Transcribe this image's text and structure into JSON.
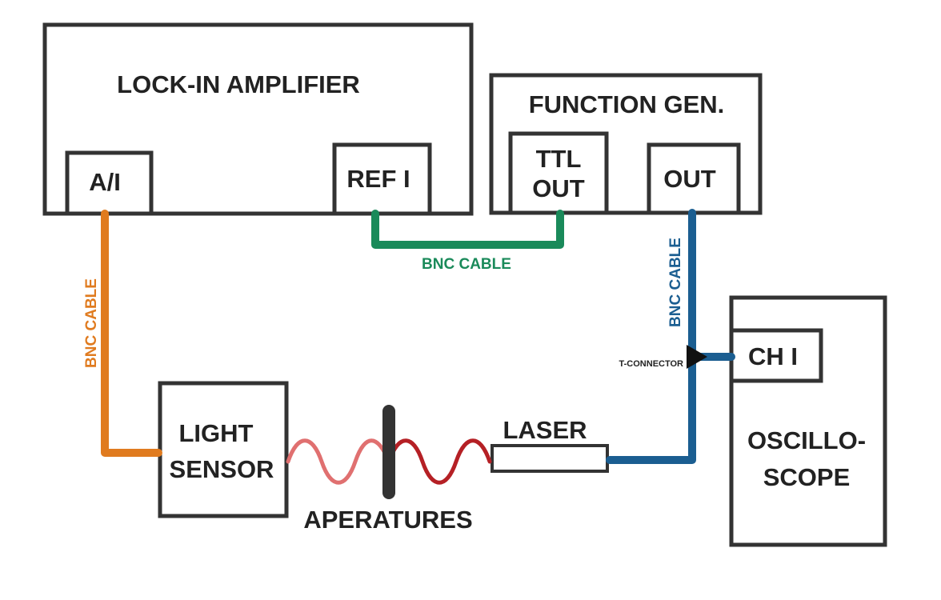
{
  "devices": {
    "lock_in": {
      "title": "LOCK-IN AMPLIFIER",
      "port_input": "A/I",
      "port_ref": "REF I"
    },
    "function_gen": {
      "title": "FUNCTION GEN.",
      "port_ttl_line1": "TTL",
      "port_ttl_line2": "OUT",
      "port_out": "OUT"
    },
    "oscilloscope": {
      "title_line1": "OSCILLO-",
      "title_line2": "SCOPE",
      "port_ch1": "CH I"
    },
    "light_sensor": {
      "title_line1": "LIGHT",
      "title_line2": "SENSOR"
    },
    "laser": {
      "title": "LASER"
    },
    "apertures": {
      "title": "APERATURES"
    }
  },
  "cables": {
    "orange": {
      "label": "BNC CABLE",
      "color": "#e07b1f"
    },
    "green": {
      "label": "BNC CABLE",
      "color": "#1a8a5a"
    },
    "blue": {
      "label": "BNC CABLE",
      "color": "#1b5e91"
    }
  },
  "connector": {
    "label": "T-CONNECTOR"
  },
  "beam_colors": {
    "near_sensor": "#e07070",
    "near_laser": "#b52025"
  }
}
